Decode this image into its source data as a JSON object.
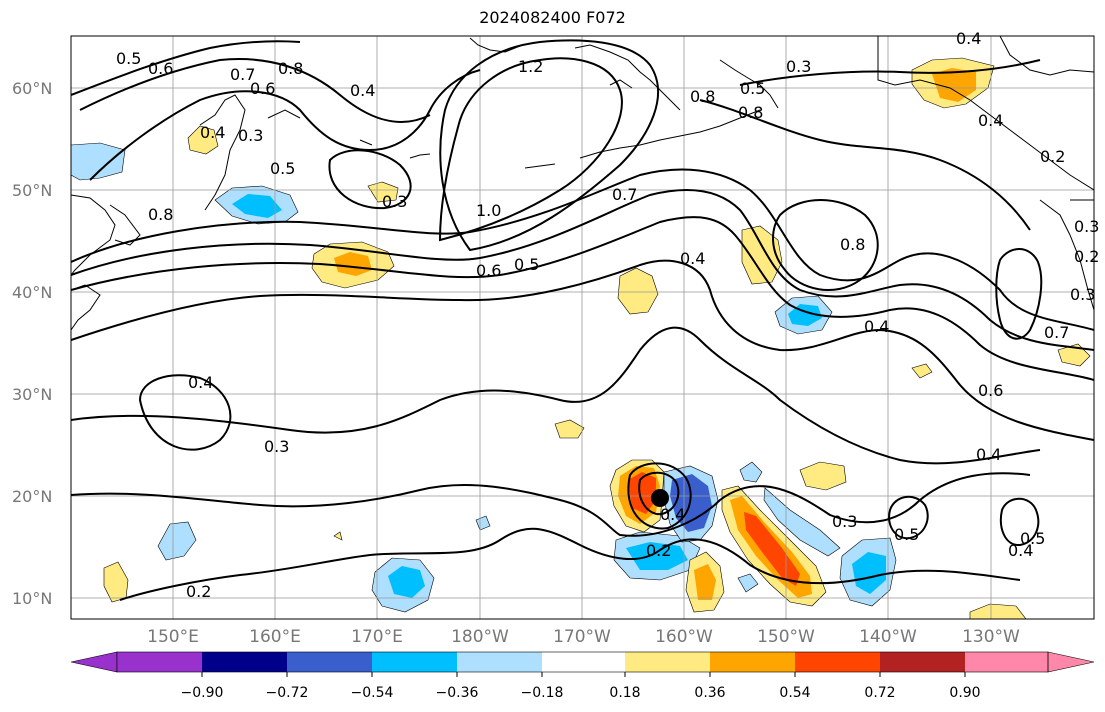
{
  "title": "2024082400 F072",
  "map": {
    "lat_labels": [
      "60°N",
      "50°N",
      "40°N",
      "30°N",
      "20°N",
      "10°N"
    ],
    "lon_labels": [
      "150°E",
      "160°E",
      "170°E",
      "180°W",
      "170°W",
      "160°W",
      "150°W",
      "140°W",
      "130°W"
    ],
    "contour_labels": [
      "0.5",
      "0.6",
      "0.7",
      "0.8",
      "0.6",
      "0.4",
      "0.4",
      "0.3",
      "0.5",
      "0.8",
      "0.3",
      "1.2",
      "0.8",
      "1.0",
      "0.7",
      "0.6",
      "0.5",
      "0.4",
      "0.3",
      "0.5",
      "0.8",
      "0.4",
      "0.2",
      "0.8",
      "0.4",
      "0.3",
      "0.6",
      "0.4",
      "0.3",
      "0.4",
      "0.2",
      "0.4",
      "0.3",
      "0.5",
      "0.5",
      "0.4",
      "0.2",
      "0.7",
      "0.2",
      "0.3",
      "0.4"
    ],
    "colors": {
      "contour": "#000000",
      "grid": "#999999",
      "coast": "#000000"
    }
  },
  "colorbar": {
    "ticks": [
      "−0.90",
      "−0.72",
      "−0.54",
      "−0.36",
      "−0.18",
      "0.18",
      "0.36",
      "0.54",
      "0.72",
      "0.90"
    ],
    "colors": [
      "#9932cc",
      "#00008b",
      "#3a5fcd",
      "#00bfff",
      "#afdfff",
      "#ffffff",
      "#ffeb82",
      "#ffa500",
      "#ff4500",
      "#b22222",
      "#ff88aa"
    ]
  }
}
